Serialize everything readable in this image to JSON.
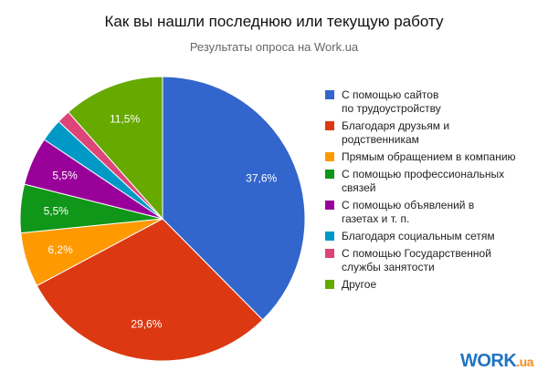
{
  "chart_data": {
    "type": "pie",
    "title": "Как вы нашли последнюю или текущую работу",
    "subtitle": "Результаты опроса на Work.ua",
    "start_angle_deg": 0,
    "direction": "clockwise",
    "legend_position": "right",
    "slices": [
      {
        "name": "С помощью сайтов по трудоустройству",
        "legend_lines": [
          "С помощью сайтов",
          "по трудоустройству"
        ],
        "value": 37.6,
        "label": "37,6%",
        "color": "#3366cc"
      },
      {
        "name": "Благодаря друзьям и родственникам",
        "legend_lines": [
          "Благодаря друзьям и",
          "родственникам"
        ],
        "value": 29.6,
        "label": "29,6%",
        "color": "#dc3912"
      },
      {
        "name": "Прямым обращением в компанию",
        "legend_lines": [
          "Прямым обращением в компанию"
        ],
        "value": 6.2,
        "label": "6,2%",
        "color": "#ff9900"
      },
      {
        "name": "С помощью профессиональных связей",
        "legend_lines": [
          "С помощью профессиональных",
          "связей"
        ],
        "value": 5.5,
        "label": "5,5%",
        "color": "#109618"
      },
      {
        "name": "С помощью объявлений в газетах и т. п.",
        "legend_lines": [
          "С помощью объявлений в",
          "газетах и т. п."
        ],
        "value": 5.5,
        "label": "5,5%",
        "color": "#990099"
      },
      {
        "name": "Благодаря социальным сетям",
        "legend_lines": [
          "Благодаря социальным сетям"
        ],
        "value": 2.6,
        "label": "",
        "color": "#0099c6"
      },
      {
        "name": "С помощью Государственной службы занятости",
        "legend_lines": [
          "С помощью Государственной",
          "службы занятости"
        ],
        "value": 1.5,
        "label": "",
        "color": "#dd4477"
      },
      {
        "name": "Другое",
        "legend_lines": [
          "Другое"
        ],
        "value": 11.5,
        "label": "11,5%",
        "color": "#66aa00"
      }
    ]
  },
  "logo": {
    "main": "WORK",
    "suffix": ".ua"
  }
}
